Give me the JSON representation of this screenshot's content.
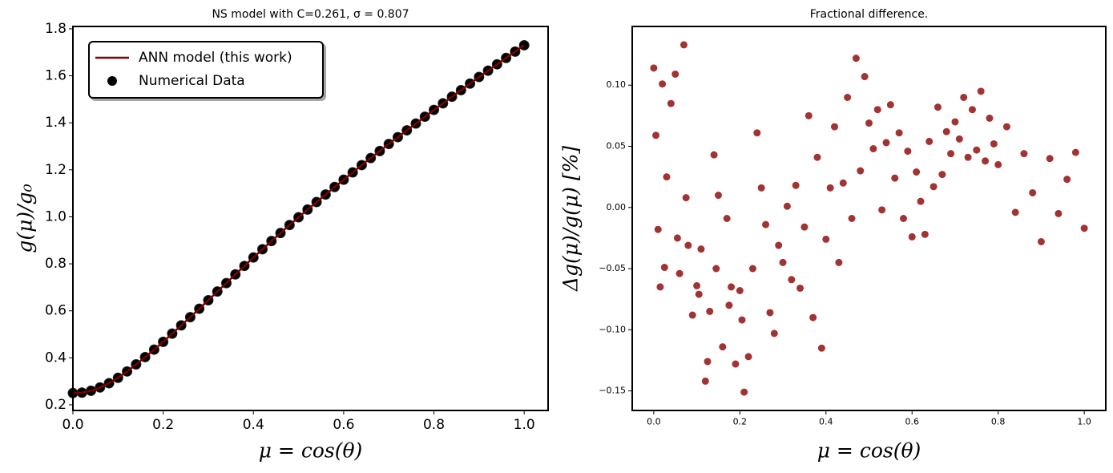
{
  "chart_data": [
    {
      "type": "line",
      "title": "NS model with C=0.261, σ = 0.807",
      "x_label": "μ = cos(θ)",
      "y_label": "g(μ)/g₀",
      "x": [
        0,
        0.02,
        0.04,
        0.06,
        0.08,
        0.1,
        0.12,
        0.14,
        0.16,
        0.18,
        0.2,
        0.22,
        0.24,
        0.26,
        0.28,
        0.3,
        0.32,
        0.34,
        0.36,
        0.38,
        0.4,
        0.42,
        0.44,
        0.46,
        0.48,
        0.5,
        0.52,
        0.54,
        0.56,
        0.58,
        0.6,
        0.62,
        0.64,
        0.66,
        0.68,
        0.7,
        0.72,
        0.74,
        0.76,
        0.78,
        0.8,
        0.82,
        0.84,
        0.86,
        0.88,
        0.9,
        0.92,
        0.94,
        0.96,
        0.98,
        1
      ],
      "series": [
        {
          "name": "ANN model (this work)",
          "type": "line",
          "color": "#7b0000",
          "values": [
            0.25,
            0.252,
            0.26,
            0.274,
            0.292,
            0.315,
            0.342,
            0.372,
            0.403,
            0.435,
            0.468,
            0.503,
            0.538,
            0.573,
            0.609,
            0.645,
            0.682,
            0.718,
            0.755,
            0.791,
            0.827,
            0.862,
            0.897,
            0.931,
            0.965,
            0.998,
            1.031,
            1.063,
            1.095,
            1.127,
            1.158,
            1.189,
            1.22,
            1.25,
            1.28,
            1.31,
            1.339,
            1.368,
            1.397,
            1.426,
            1.455,
            1.483,
            1.511,
            1.539,
            1.567,
            1.595,
            1.622,
            1.649,
            1.676,
            1.703,
            1.73
          ]
        },
        {
          "name": "Numerical Data",
          "type": "scatter",
          "color": "#000000",
          "values": [
            0.25,
            0.252,
            0.26,
            0.274,
            0.292,
            0.315,
            0.342,
            0.372,
            0.403,
            0.435,
            0.468,
            0.503,
            0.538,
            0.573,
            0.609,
            0.645,
            0.682,
            0.718,
            0.755,
            0.791,
            0.827,
            0.862,
            0.897,
            0.931,
            0.965,
            0.998,
            1.031,
            1.063,
            1.095,
            1.127,
            1.158,
            1.189,
            1.22,
            1.25,
            1.28,
            1.31,
            1.339,
            1.368,
            1.397,
            1.426,
            1.455,
            1.483,
            1.511,
            1.539,
            1.567,
            1.595,
            1.622,
            1.649,
            1.676,
            1.703,
            1.73
          ]
        }
      ],
      "xlim": [
        0,
        1.053
      ],
      "ylim": [
        0.176,
        1.81
      ],
      "xticks": [
        {
          "value": 0,
          "label": "0.0"
        },
        0.2,
        0.4,
        0.6,
        0.8,
        {
          "value": 1,
          "label": "1.0"
        }
      ],
      "yticks": [
        0.2,
        0.4,
        0.6,
        0.8,
        {
          "value": 1,
          "label": "1.0"
        },
        1.2,
        1.4,
        1.6,
        1.8
      ],
      "legend": "upper left"
    },
    {
      "type": "scatter",
      "title": "Fractional difference.",
      "x_label": "μ = cos(θ)",
      "y_label": "Δg(μ)/g(μ)  [%]",
      "x": [
        0,
        0.005,
        0.01,
        0.015,
        0.02,
        0.025,
        0.03,
        0.04,
        0.05,
        0.055,
        0.06,
        0.07,
        0.075,
        0.08,
        0.09,
        0.1,
        0.105,
        0.11,
        0.12,
        0.125,
        0.13,
        0.14,
        0.145,
        0.15,
        0.16,
        0.17,
        0.175,
        0.18,
        0.19,
        0.2,
        0.205,
        0.21,
        0.22,
        0.23,
        0.24,
        0.25,
        0.26,
        0.27,
        0.28,
        0.29,
        0.3,
        0.31,
        0.32,
        0.33,
        0.34,
        0.35,
        0.36,
        0.37,
        0.38,
        0.39,
        0.4,
        0.41,
        0.42,
        0.43,
        0.44,
        0.45,
        0.46,
        0.47,
        0.48,
        0.49,
        0.5,
        0.51,
        0.52,
        0.53,
        0.54,
        0.55,
        0.56,
        0.57,
        0.58,
        0.59,
        0.6,
        0.61,
        0.62,
        0.63,
        0.64,
        0.65,
        0.66,
        0.67,
        0.68,
        0.69,
        0.7,
        0.71,
        0.72,
        0.73,
        0.74,
        0.75,
        0.76,
        0.77,
        0.78,
        0.79,
        0.8,
        0.82,
        0.84,
        0.86,
        0.88,
        0.9,
        0.92,
        0.94,
        0.96,
        0.98,
        1
      ],
      "series": [
        {
          "color": "#8b0000",
          "values": [
            0.114,
            0.059,
            -0.018,
            -0.065,
            0.101,
            -0.049,
            0.025,
            0.085,
            0.109,
            -0.025,
            -0.054,
            0.133,
            0.008,
            -0.031,
            -0.088,
            -0.064,
            -0.071,
            -0.034,
            -0.142,
            -0.126,
            -0.085,
            0.043,
            -0.05,
            0.01,
            -0.114,
            -0.009,
            -0.08,
            -0.065,
            -0.128,
            -0.068,
            -0.092,
            -0.151,
            -0.122,
            -0.05,
            0.061,
            0.016,
            -0.014,
            -0.086,
            -0.103,
            -0.031,
            -0.045,
            0.001,
            -0.059,
            0.018,
            -0.066,
            -0.016,
            0.075,
            -0.09,
            0.041,
            -0.115,
            -0.026,
            0.016,
            0.066,
            -0.045,
            0.02,
            0.09,
            -0.009,
            0.122,
            0.03,
            0.107,
            0.069,
            0.048,
            0.08,
            -0.002,
            0.053,
            0.084,
            0.024,
            0.061,
            -0.009,
            0.046,
            -0.024,
            0.029,
            0.005,
            -0.022,
            0.054,
            0.017,
            0.082,
            0.027,
            0.062,
            0.044,
            0.07,
            0.056,
            0.09,
            0.041,
            0.08,
            0.047,
            0.095,
            0.038,
            0.073,
            0.052,
            0.035,
            0.066,
            -0.004,
            0.044,
            0.012,
            -0.028,
            0.04,
            -0.005,
            0.023,
            0.045,
            -0.017
          ]
        }
      ],
      "xlim": [
        -0.05,
        1.05
      ],
      "ylim": [
        -0.166,
        0.148
      ],
      "xticks": [
        {
          "value": 0,
          "label": "0.0"
        },
        0.2,
        0.4,
        0.6,
        0.8,
        {
          "value": 1,
          "label": "1.0"
        }
      ],
      "yticks": [
        {
          "value": -0.15,
          "label": "−0.15"
        },
        {
          "value": -0.1,
          "label": "−0.10"
        },
        {
          "value": -0.05,
          "label": "−0.05"
        },
        {
          "value": 0,
          "label": "0.00"
        },
        0.05,
        {
          "value": 0.1,
          "label": "0.10"
        }
      ]
    }
  ]
}
